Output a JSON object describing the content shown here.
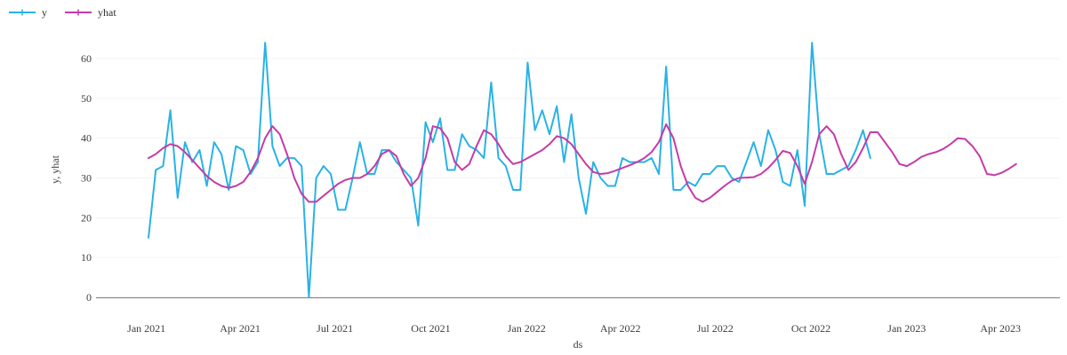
{
  "legend": {
    "items": [
      {
        "label": "y",
        "color": "#29b2e6"
      },
      {
        "label": "yhat",
        "color": "#c43ba8"
      }
    ]
  },
  "axes": {
    "x": {
      "title": "ds",
      "tick_labels": [
        "Jan 2021",
        "Apr 2021",
        "Jul 2021",
        "Oct 2021",
        "Jan 2022",
        "Apr 2022",
        "Jul 2022",
        "Oct 2022",
        "Jan 2023",
        "Apr 2023"
      ],
      "tick_dates": [
        "2021-01-01",
        "2021-04-01",
        "2021-07-01",
        "2021-10-01",
        "2022-01-01",
        "2022-04-01",
        "2022-07-01",
        "2022-10-01",
        "2023-01-01",
        "2023-04-01"
      ]
    },
    "y": {
      "title": "y, yhat",
      "ticks": [
        0,
        10,
        20,
        30,
        40,
        50,
        60
      ]
    }
  },
  "chart_data": {
    "type": "line",
    "title": "",
    "xlabel": "ds",
    "ylabel": "y, yhat",
    "x_start": "2021-01-03",
    "frequency": "weekly",
    "ylim": [
      0,
      67
    ],
    "grid": "faint-horizontal",
    "legend_position": "top-left",
    "axis_line_color": "#8a8a8a",
    "grid_color": "#f3f3f3",
    "series": [
      {
        "name": "y",
        "color": "#29b2e6",
        "start_week": 0,
        "values": [
          15,
          32,
          33,
          47,
          25,
          39,
          34,
          37,
          28,
          39,
          36,
          27,
          38,
          37,
          31,
          34,
          64,
          38,
          33,
          35,
          35,
          33,
          0,
          30,
          33,
          31,
          22,
          22,
          30,
          39,
          31,
          31,
          37,
          37,
          34,
          32,
          30,
          18,
          44,
          39,
          45,
          32,
          32,
          41,
          38,
          37,
          35,
          54,
          35,
          33,
          27,
          27,
          59,
          42,
          47,
          41,
          48,
          34,
          46,
          30,
          21,
          34,
          30,
          28,
          28,
          35,
          34,
          34,
          34,
          35,
          31,
          58,
          27,
          27,
          29,
          28,
          31,
          31,
          33,
          33,
          30,
          29,
          34,
          39,
          33,
          42,
          37,
          29,
          28,
          37,
          23,
          64,
          41,
          31,
          31,
          32,
          33,
          37,
          42,
          35
        ]
      },
      {
        "name": "yhat",
        "color": "#c43ba8",
        "start_week": 0,
        "values": [
          35,
          36,
          37.5,
          38.5,
          38,
          36.5,
          34.5,
          32.5,
          30.5,
          29,
          28,
          27.5,
          28,
          29,
          31.5,
          35,
          40,
          43,
          41,
          36,
          30,
          26,
          24,
          24,
          25.5,
          27,
          28.5,
          29.5,
          30,
          30,
          31,
          33,
          36,
          37,
          35.5,
          31,
          28,
          30,
          35,
          43,
          42.5,
          40,
          34,
          32,
          33.5,
          38,
          42,
          41,
          38.5,
          35.5,
          33.5,
          34,
          35,
          36,
          37,
          38.5,
          40.5,
          40,
          38.5,
          36,
          33.5,
          31.5,
          31,
          31.2,
          31.8,
          32.5,
          33.2,
          34,
          35,
          36.5,
          39,
          43.5,
          40,
          33,
          28,
          25,
          24,
          25,
          26.5,
          28,
          29.3,
          30,
          30.1,
          30.2,
          31,
          32.5,
          34.5,
          36.8,
          36.3,
          33,
          28.5,
          34,
          41,
          43,
          41,
          36,
          32,
          34,
          37.5,
          41.5,
          41.5,
          39,
          36.5,
          33.5,
          33,
          34,
          35.3,
          36,
          36.5,
          37.3,
          38.5,
          40,
          39.8,
          38,
          35.5,
          31,
          30.7,
          31.3,
          32.3,
          33.5
        ]
      }
    ]
  }
}
